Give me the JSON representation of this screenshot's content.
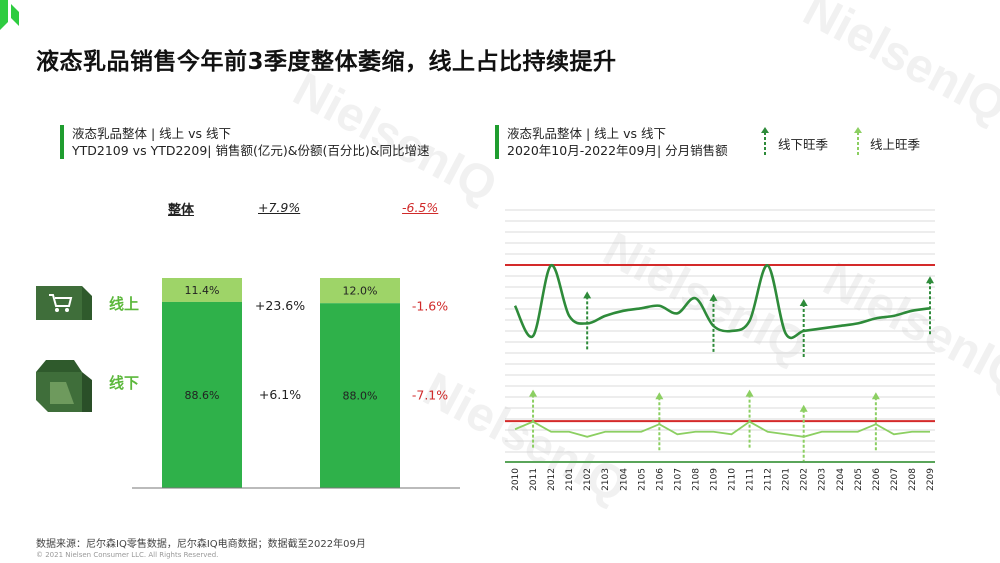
{
  "title": "液态乳品销售今年前3季度整体萎缩，线上占比持续提升",
  "watermark": "NielsenIQ",
  "left_panel": {
    "subtitle_line1": "液态乳品整体 | 线上 vs 线下",
    "subtitle_line2": "YTD2109 vs YTD2209| 销售额(亿元)&份额(百分比)&同比增速",
    "overall_label": "整体",
    "overall_growth_2109": "+7.9%",
    "overall_growth_2209": "-6.5%",
    "online_label": "线上",
    "offline_label": "线下"
  },
  "right_panel": {
    "subtitle_line1": "液态乳品整体 | 线上 vs 线下",
    "subtitle_line2": "2020年10月-2022年09月| 分月销售额",
    "legend_offline_peak": "线下旺季",
    "legend_online_peak": "线上旺季"
  },
  "footer": {
    "source": "数据来源：尼尔森IQ零售数据，尼尔森IQ电商数据；数据截至2022年09月",
    "copyright": "© 2021 Nielsen Consumer LLC. All Rights Reserved."
  },
  "colors": {
    "online": "#9ed468",
    "offline": "#2fb14a",
    "offline_line": "#2e8b3a",
    "online_line": "#8ccf62",
    "peak_line": "#d42a2a",
    "brand": "#1f9d2f"
  },
  "chart_data": [
    {
      "type": "bar",
      "stacked": true,
      "categories": [
        "YTD2109",
        "YTD2209"
      ],
      "series": [
        {
          "name": "线下",
          "values": [
            88.6,
            88.0
          ],
          "labels": [
            "88.6%",
            "88.0%"
          ],
          "growth": [
            "+6.1%",
            "-7.1%"
          ]
        },
        {
          "name": "线上",
          "values": [
            11.4,
            12.0
          ],
          "labels": [
            "11.4%",
            "12.0%"
          ],
          "growth": [
            "+23.6%",
            "-1.6%"
          ]
        }
      ],
      "ylim": [
        0,
        100
      ]
    },
    {
      "type": "line",
      "x": [
        "2010",
        "2011",
        "2012",
        "2101",
        "2102",
        "2103",
        "2104",
        "2105",
        "2106",
        "2107",
        "2108",
        "2109",
        "2110",
        "2111",
        "2112",
        "2201",
        "2202",
        "2203",
        "2204",
        "2205",
        "2206",
        "2207",
        "2208",
        "2209"
      ],
      "series": [
        {
          "name": "线下",
          "values": [
            62,
            50,
            78,
            58,
            55,
            58,
            60,
            61,
            62,
            59,
            65,
            54,
            52,
            56,
            78,
            51,
            52,
            53,
            54,
            55,
            57,
            58,
            60,
            61
          ],
          "peaks": [
            "2102",
            "2109",
            "2202",
            "2209"
          ]
        },
        {
          "name": "线上",
          "values": [
            13,
            16,
            12,
            12,
            10,
            12,
            12,
            12,
            15,
            11,
            12,
            12,
            11,
            16,
            12,
            11,
            10,
            12,
            12,
            12,
            15,
            11,
            12,
            12
          ],
          "peaks": [
            "2011",
            "2106",
            "2111",
            "2202",
            "2206"
          ]
        }
      ],
      "ylim": [
        0,
        100
      ]
    }
  ]
}
